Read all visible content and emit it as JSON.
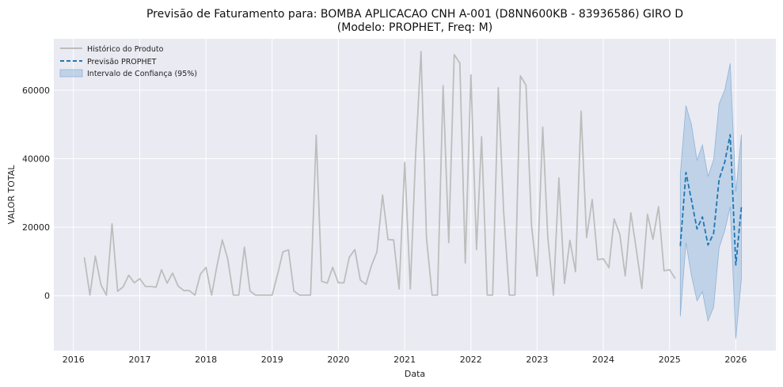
{
  "chart_data": {
    "type": "line",
    "title": "Previsão de Faturamento para: BOMBA APLICACAO CNH A-001 (D8NN600KB - 83936586) GIRO D",
    "subtitle": "(Modelo: PROPHET, Freq: M)",
    "xlabel": "Data",
    "ylabel": "VALOR TOTAL",
    "xlim": [
      "2015-09-15",
      "2026-08-10"
    ],
    "ylim": [
      -16000,
      75000
    ],
    "x_ticks": [
      "2016",
      "2017",
      "2018",
      "2019",
      "2020",
      "2021",
      "2022",
      "2023",
      "2024",
      "2025",
      "2026"
    ],
    "y_ticks": [
      0,
      20000,
      40000,
      60000
    ],
    "y_tick_labels": [
      "0",
      "20000",
      "40000",
      "60000"
    ],
    "grid": true,
    "legend_position": "top-left",
    "legend": [
      "Histórico do Produto",
      "Previsão PROPHET",
      "Intervalo de Confiança (95%)"
    ],
    "colors": {
      "history": "#bdbdbd",
      "forecast": "#1f77b4",
      "band": "#a7c4e0",
      "plot_bg": "#eaeaf2",
      "grid": "#ffffff"
    },
    "history": {
      "name": "Histórico do Produto",
      "start": "2016-03",
      "freq": "M",
      "values": [
        11200,
        200,
        11600,
        3200,
        200,
        21000,
        1300,
        2600,
        6000,
        3800,
        5000,
        2700,
        2700,
        2500,
        7600,
        3700,
        6600,
        2800,
        1500,
        1500,
        200,
        6300,
        8300,
        200,
        8300,
        16300,
        10800,
        200,
        200,
        14200,
        1400,
        200,
        200,
        200,
        200,
        6500,
        12800,
        13400,
        1400,
        200,
        200,
        200,
        46900,
        4200,
        3700,
        8300,
        3800,
        3800,
        11200,
        13500,
        4600,
        3300,
        8700,
        12800,
        29400,
        16400,
        16300,
        2000,
        38900,
        2000,
        39900,
        71300,
        16800,
        200,
        200,
        61300,
        15500,
        70400,
        67900,
        9600,
        64500,
        13500,
        46400,
        200,
        200,
        60700,
        24400,
        200,
        200,
        64200,
        61500,
        20600,
        5700,
        49200,
        17200,
        200,
        34400,
        3600,
        16200,
        7000,
        53900,
        17000,
        28100,
        10500,
        10800,
        8200,
        22400,
        18000,
        5800,
        24200,
        13700,
        2100,
        23800,
        16500,
        26000,
        7300,
        7600,
        5000
      ]
    },
    "forecast": {
      "name": "Previsão PROPHET",
      "start": "2025-03",
      "freq": "M",
      "values": [
        14500,
        36000,
        28000,
        19500,
        23000,
        14800,
        18200,
        34000,
        39000,
        47000,
        9000,
        26000
      ],
      "lower": [
        -6000,
        15500,
        6000,
        -1500,
        1200,
        -7300,
        -3300,
        14000,
        19000,
        26000,
        -12500,
        5000
      ],
      "upper": [
        35500,
        55500,
        50000,
        39500,
        44000,
        34800,
        39700,
        56000,
        60000,
        67800,
        30300,
        47000
      ]
    }
  }
}
